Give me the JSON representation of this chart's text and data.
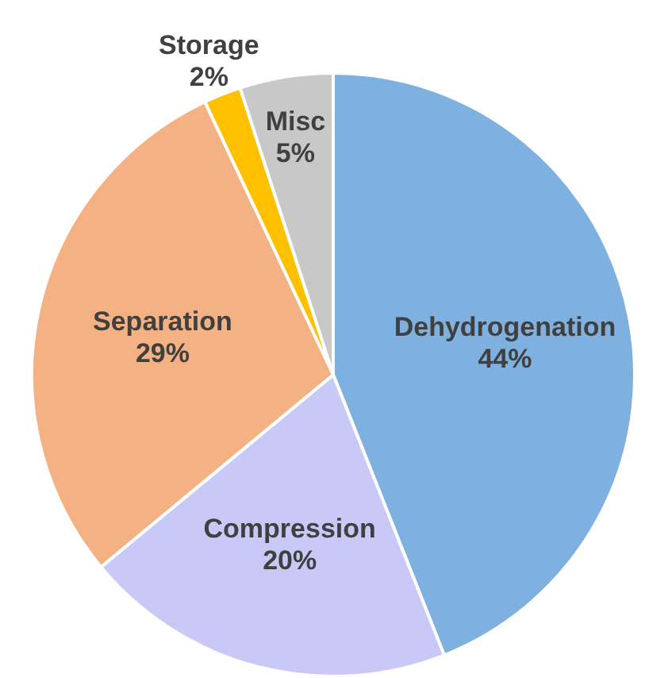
{
  "chart_data": {
    "type": "pie",
    "categories": [
      "Dehydrogenation",
      "Compression",
      "Separation",
      "Storage",
      "Misc"
    ],
    "values": [
      44,
      20,
      29,
      2,
      5
    ],
    "value_labels": [
      "44%",
      "20%",
      "29%",
      "2%",
      "5%"
    ],
    "colors": [
      "#7fb1e0",
      "#c9c9f7",
      "#f4b183",
      "#ffc000",
      "#c8c8c8"
    ],
    "legend": false
  }
}
